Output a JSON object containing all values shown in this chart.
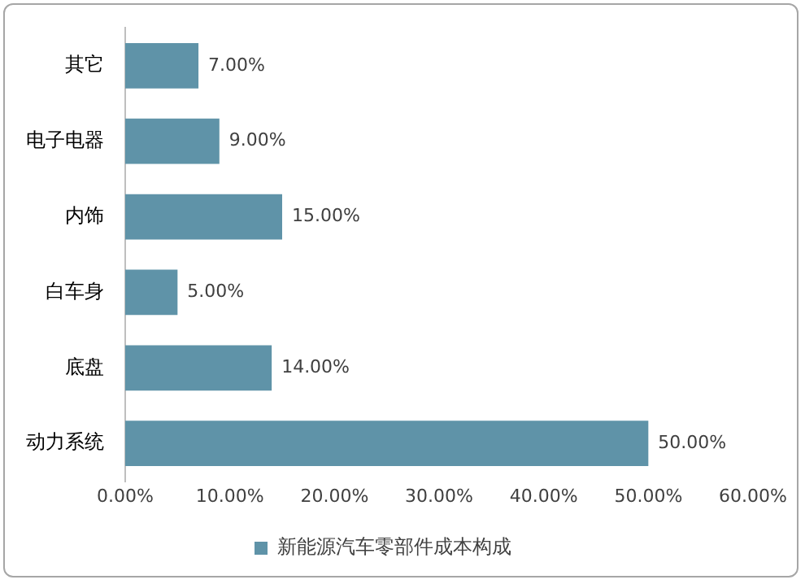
{
  "chart_data": {
    "type": "bar",
    "orientation": "horizontal",
    "categories": [
      "其它",
      "电子电器",
      "内饰",
      "白车身",
      "底盘",
      "动力系统"
    ],
    "series": [
      {
        "name": "新能源汽车零部件成本构成",
        "color": "#5f93a8",
        "values": [
          7,
          9,
          15,
          5,
          14,
          50
        ],
        "value_labels": [
          "7.00%",
          "9.00%",
          "15.00%",
          "5.00%",
          "14.00%",
          "50.00%"
        ]
      }
    ],
    "xlim": [
      0,
      60
    ],
    "xticks": [
      {
        "value": 0,
        "label": "0.00%"
      },
      {
        "value": 10,
        "label": "10.00%"
      },
      {
        "value": 20,
        "label": "20.00%"
      },
      {
        "value": 30,
        "label": "30.00%"
      },
      {
        "value": 40,
        "label": "40.00%"
      },
      {
        "value": 50,
        "label": "50.00%"
      },
      {
        "value": 60,
        "label": "60.00%"
      }
    ],
    "legend": "bottom"
  }
}
